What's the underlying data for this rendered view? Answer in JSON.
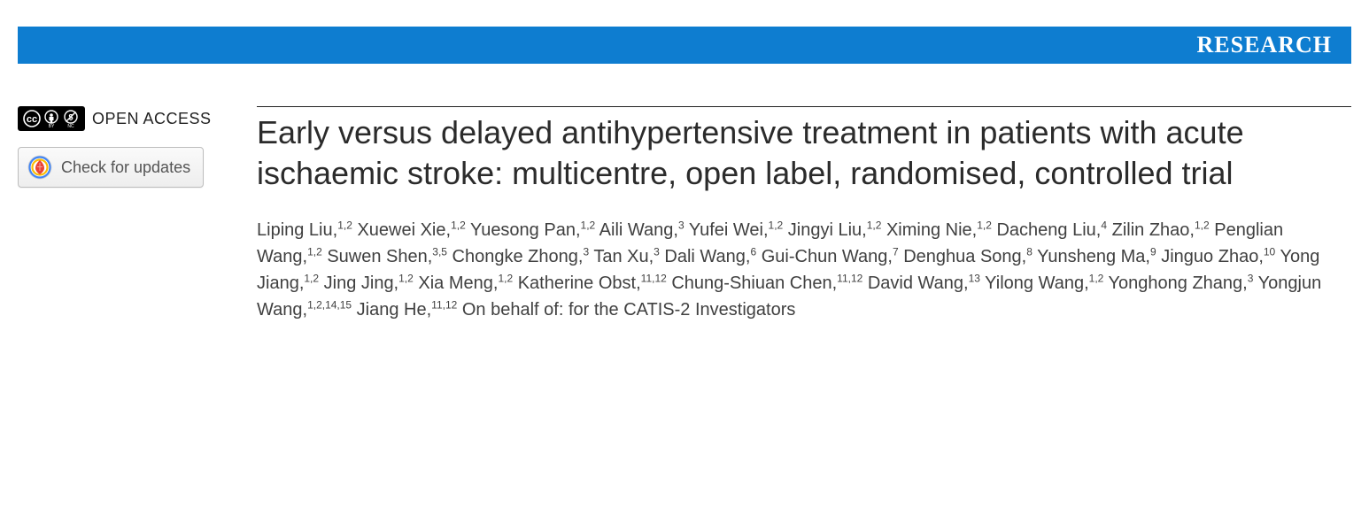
{
  "banner": {
    "label": "RESEARCH",
    "background_color": "#0e7dd0",
    "text_color": "#ffffff"
  },
  "sidebar": {
    "open_access_label": "OPEN ACCESS",
    "cc_badge": {
      "background": "#000000",
      "icon_color": "#ffffff"
    },
    "updates_button": {
      "label": "Check for updates",
      "icon_colors": {
        "outer": "#4285f4",
        "mid": "#fbbc05",
        "inner": "#ea4335"
      }
    }
  },
  "article": {
    "title": "Early versus delayed antihypertensive treatment in patients with acute ischaemic stroke: multicentre, open label, randomised, controlled trial",
    "authors": [
      {
        "name": "Liping Liu",
        "affil": "1,2"
      },
      {
        "name": "Xuewei Xie",
        "affil": "1,2"
      },
      {
        "name": "Yuesong Pan",
        "affil": "1,2"
      },
      {
        "name": "Aili Wang",
        "affil": "3"
      },
      {
        "name": "Yufei Wei",
        "affil": "1,2"
      },
      {
        "name": "Jingyi Liu",
        "affil": "1,2"
      },
      {
        "name": "Ximing Nie",
        "affil": "1,2"
      },
      {
        "name": "Dacheng Liu",
        "affil": "4"
      },
      {
        "name": "Zilin Zhao",
        "affil": "1,2"
      },
      {
        "name": "Penglian Wang",
        "affil": "1,2"
      },
      {
        "name": "Suwen Shen",
        "affil": "3,5"
      },
      {
        "name": "Chongke Zhong",
        "affil": "3"
      },
      {
        "name": "Tan Xu",
        "affil": "3"
      },
      {
        "name": "Dali Wang",
        "affil": "6"
      },
      {
        "name": "Gui-Chun Wang",
        "affil": "7"
      },
      {
        "name": "Denghua Song",
        "affil": "8"
      },
      {
        "name": "Yunsheng Ma",
        "affil": "9"
      },
      {
        "name": "Jinguo Zhao",
        "affil": "10"
      },
      {
        "name": "Yong Jiang",
        "affil": "1,2"
      },
      {
        "name": "Jing Jing",
        "affil": "1,2"
      },
      {
        "name": "Xia Meng",
        "affil": "1,2"
      },
      {
        "name": "Katherine Obst",
        "affil": "11,12"
      },
      {
        "name": "Chung-Shiuan Chen",
        "affil": "11,12"
      },
      {
        "name": "David Wang",
        "affil": "13"
      },
      {
        "name": "Yilong Wang",
        "affil": "1,2"
      },
      {
        "name": "Yonghong Zhang",
        "affil": "3"
      },
      {
        "name": "Yongjun Wang",
        "affil": "1,2,14,15"
      },
      {
        "name": "Jiang He",
        "affil": "11,12"
      }
    ],
    "behalf_text": "On behalf of: for the CATIS-2 Investigators"
  },
  "typography": {
    "title_fontsize": 36,
    "author_fontsize": 20,
    "banner_fontsize": 26
  }
}
